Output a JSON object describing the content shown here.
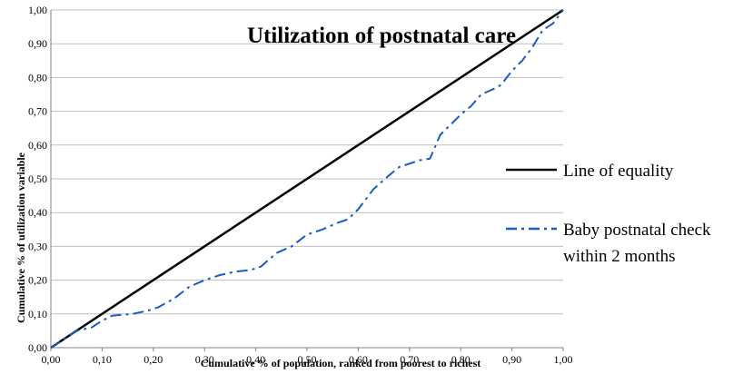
{
  "chart_data": {
    "type": "line",
    "title": "Utilization of postnatal care",
    "xlabel": "Cumulative % of population, ranked from poorest to richest",
    "ylabel": "Cumulative % of utilization variable",
    "xlim": [
      0,
      1
    ],
    "ylim": [
      0,
      1
    ],
    "grid": true,
    "legend_position": "right",
    "x_ticks": [
      "0,00",
      "0,10",
      "0,20",
      "0,30",
      "0,40",
      "0,50",
      "0,60",
      "0,70",
      "0,80",
      "0,90",
      "1,00"
    ],
    "y_ticks": [
      "0,00",
      "0,10",
      "0,20",
      "0,30",
      "0,40",
      "0,50",
      "0,60",
      "0,70",
      "0,80",
      "0,90",
      "1,00"
    ],
    "series": [
      {
        "name": "Line of equality",
        "color": "#000000",
        "style": "solid",
        "x": [
          0,
          1
        ],
        "y": [
          0,
          1
        ]
      },
      {
        "name": "Baby postnatal check within 2 months",
        "legend_lines": [
          "Baby postnatal check",
          "within 2 months"
        ],
        "color": "#1a5bc4",
        "style": "dash-dot",
        "x": [
          0,
          0.02,
          0.05,
          0.08,
          0.1,
          0.12,
          0.16,
          0.19,
          0.21,
          0.24,
          0.27,
          0.3,
          0.33,
          0.36,
          0.39,
          0.41,
          0.44,
          0.47,
          0.5,
          0.53,
          0.56,
          0.58,
          0.6,
          0.63,
          0.66,
          0.68,
          0.72,
          0.74,
          0.76,
          0.78,
          0.8,
          0.82,
          0.84,
          0.87,
          0.88,
          0.9,
          0.92,
          0.94,
          0.96,
          0.98,
          1.0
        ],
        "y": [
          0,
          0.02,
          0.05,
          0.06,
          0.08,
          0.095,
          0.1,
          0.11,
          0.12,
          0.145,
          0.18,
          0.2,
          0.215,
          0.225,
          0.23,
          0.24,
          0.28,
          0.3,
          0.335,
          0.35,
          0.37,
          0.38,
          0.41,
          0.47,
          0.51,
          0.535,
          0.555,
          0.56,
          0.63,
          0.66,
          0.69,
          0.715,
          0.75,
          0.77,
          0.78,
          0.82,
          0.85,
          0.89,
          0.94,
          0.96,
          1.0
        ]
      }
    ]
  }
}
